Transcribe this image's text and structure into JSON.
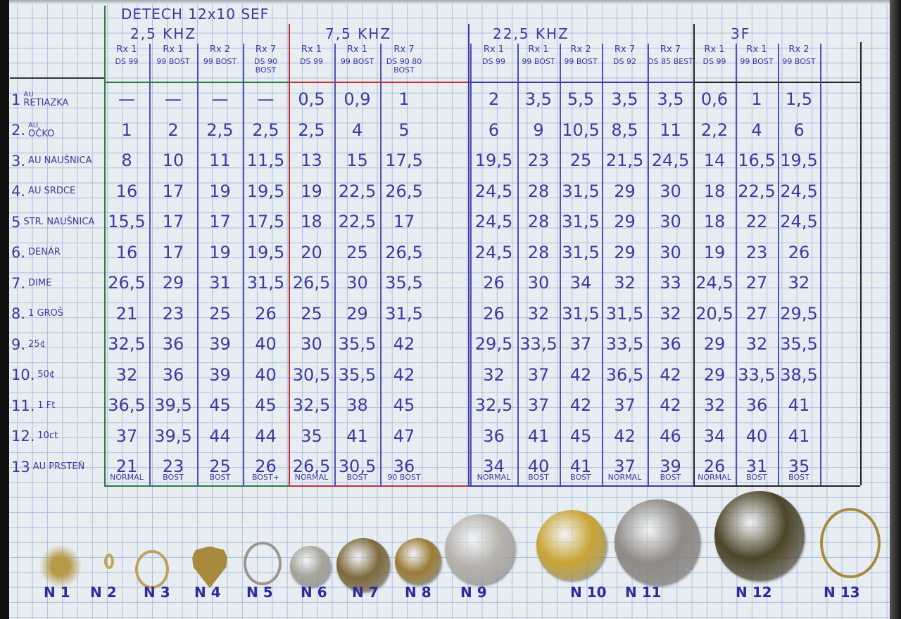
{
  "title": "DETECH 12x10 SEF",
  "groups": [
    {
      "label": "2,5 KHZ",
      "columns": [
        {
          "rx": "Rx 1",
          "setting": "DS 99",
          "mode": "NORMAL"
        },
        {
          "rx": "Rx 1",
          "setting": "99 BOST",
          "mode": "BOST"
        },
        {
          "rx": "Rx 2",
          "setting": "99 BOST",
          "mode": "BOST"
        },
        {
          "rx": "Rx 7",
          "setting": "DS 90 BOST",
          "mode": "BOST+"
        }
      ]
    },
    {
      "label": "7,5 KHZ",
      "columns": [
        {
          "rx": "Rx 1",
          "setting": "DS 99",
          "mode": "NORMAL"
        },
        {
          "rx": "Rx 1",
          "setting": "99 BOST",
          "mode": "BOST"
        },
        {
          "rx": "Rx 7",
          "setting": "DS 90 80 BOST",
          "mode": "90 BOST"
        }
      ]
    },
    {
      "label": "22,5 KHZ",
      "columns": [
        {
          "rx": "Rx 1",
          "setting": "DS 99",
          "mode": "NORMAL"
        },
        {
          "rx": "Rx 1",
          "setting": "99 BOST",
          "mode": "BOST"
        },
        {
          "rx": "Rx 2",
          "setting": "99 BOST",
          "mode": "BOST"
        },
        {
          "rx": "Rx 7",
          "setting": "DS 92",
          "mode": "NORMAL"
        },
        {
          "rx": "Rx 7",
          "setting": "DS 85 BEST",
          "mode": "BOST"
        }
      ]
    },
    {
      "label": "3F",
      "columns": [
        {
          "rx": "Rx 1",
          "setting": "DS 99",
          "mode": "NORMAL"
        },
        {
          "rx": "Rx 1",
          "setting": "99 BOST",
          "mode": "BOST"
        },
        {
          "rx": "Rx 2",
          "setting": "99 BOST",
          "mode": "BOST"
        }
      ]
    }
  ],
  "rows": [
    {
      "num": "1",
      "sup": "AU",
      "name": "RETIAZKA",
      "values": [
        "—",
        "—",
        "—",
        "—",
        "0,5",
        "0,9",
        "1",
        "2",
        "3,5",
        "5,5",
        "3,5",
        "3,5",
        "0,6",
        "1",
        "1,5"
      ]
    },
    {
      "num": "2.",
      "sup": "AU",
      "name": "OČKO",
      "values": [
        "1",
        "2",
        "2,5",
        "2,5",
        "2,5",
        "4",
        "5",
        "6",
        "9",
        "10,5",
        "8,5",
        "11",
        "2,2",
        "4",
        "6"
      ]
    },
    {
      "num": "3.",
      "sup": "",
      "name": "AU NAUŠNICA",
      "values": [
        "8",
        "10",
        "11",
        "11,5",
        "13",
        "15",
        "17,5",
        "19,5",
        "23",
        "25",
        "21,5",
        "24,5",
        "14",
        "16,5",
        "19,5"
      ]
    },
    {
      "num": "4.",
      "sup": "",
      "name": "AU SRDCE",
      "values": [
        "16",
        "17",
        "19",
        "19,5",
        "19",
        "22,5",
        "26,5",
        "24,5",
        "28",
        "31,5",
        "29",
        "30",
        "18",
        "22,5",
        "24,5"
      ]
    },
    {
      "num": "5",
      "sup": "",
      "name": "STR. NAUŠNICA",
      "values": [
        "15,5",
        "17",
        "17",
        "17,5",
        "18",
        "22,5",
        "17",
        "24,5",
        "28",
        "31,5",
        "29",
        "30",
        "18",
        "22",
        "24,5"
      ]
    },
    {
      "num": "6.",
      "sup": "",
      "name": "DENÁR",
      "values": [
        "16",
        "17",
        "19",
        "19,5",
        "20",
        "25",
        "26,5",
        "24,5",
        "28",
        "31,5",
        "29",
        "30",
        "19",
        "23",
        "26"
      ]
    },
    {
      "num": "7.",
      "sup": "",
      "name": "DIME",
      "values": [
        "26,5",
        "29",
        "31",
        "31,5",
        "26,5",
        "30",
        "35,5",
        "26",
        "30",
        "34",
        "32",
        "33",
        "24,5",
        "27",
        "32"
      ]
    },
    {
      "num": "8.",
      "sup": "",
      "name": "1 GROŠ",
      "values": [
        "21",
        "23",
        "25",
        "26",
        "25",
        "29",
        "31,5",
        "26",
        "32",
        "31,5",
        "31,5",
        "32",
        "20,5",
        "27",
        "29,5"
      ]
    },
    {
      "num": "9.",
      "sup": "",
      "name": "25¢",
      "values": [
        "32,5",
        "36",
        "39",
        "40",
        "30",
        "35,5",
        "42",
        "29,5",
        "33,5",
        "37",
        "33,5",
        "36",
        "29",
        "32",
        "35,5"
      ]
    },
    {
      "num": "10.",
      "sup": "",
      "name": "50¢",
      "values": [
        "32",
        "36",
        "39",
        "40",
        "30,5",
        "35,5",
        "42",
        "32",
        "37",
        "42",
        "36,5",
        "42",
        "29",
        "33,5",
        "38,5"
      ]
    },
    {
      "num": "11.",
      "sup": "",
      "name": "1 Ft",
      "values": [
        "36,5",
        "39,5",
        "45",
        "45",
        "32,5",
        "38",
        "45",
        "32,5",
        "37",
        "42",
        "37",
        "42",
        "32",
        "36",
        "41"
      ]
    },
    {
      "num": "12.",
      "sup": "",
      "name": "10ct",
      "values": [
        "37",
        "39,5",
        "44",
        "44",
        "35",
        "41",
        "47",
        "36",
        "41",
        "45",
        "42",
        "46",
        "34",
        "40",
        "41"
      ]
    },
    {
      "num": "13",
      "sup": "",
      "name": "AU PRSTEŇ",
      "values": [
        "21",
        "23",
        "25",
        "26",
        "26,5",
        "30,5",
        "36",
        "34",
        "40",
        "41",
        "37",
        "39",
        "26",
        "31",
        "35"
      ]
    }
  ],
  "items": [
    {
      "label": "N 1",
      "kind": "chain",
      "color": "#b59a4a"
    },
    {
      "label": "N 2",
      "kind": "small-ring",
      "color": "#c4a552"
    },
    {
      "label": "N 3",
      "kind": "earring",
      "color": "#bfa060"
    },
    {
      "label": "N 4",
      "kind": "heart",
      "color": "#a88a3e"
    },
    {
      "label": "N 5",
      "kind": "ring",
      "color": "#9a9590"
    },
    {
      "label": "N 6",
      "kind": "coin",
      "color": "#a8a49b"
    },
    {
      "label": "N 7",
      "kind": "coin",
      "color": "#7e6a3c"
    },
    {
      "label": "N 8",
      "kind": "coin",
      "color": "#9c7b35"
    },
    {
      "label": "N 9",
      "kind": "coin",
      "color": "#b6b3ad"
    },
    {
      "label": "N 10",
      "kind": "coin",
      "color": "#c9a534"
    },
    {
      "label": "N 11",
      "kind": "coin",
      "color": "#8f8a85"
    },
    {
      "label": "N 12",
      "kind": "coin",
      "color": "#4e4528"
    },
    {
      "label": "N 13",
      "kind": "ring",
      "color": "#a88a3e"
    }
  ],
  "ink_color": "#3b3a9e"
}
